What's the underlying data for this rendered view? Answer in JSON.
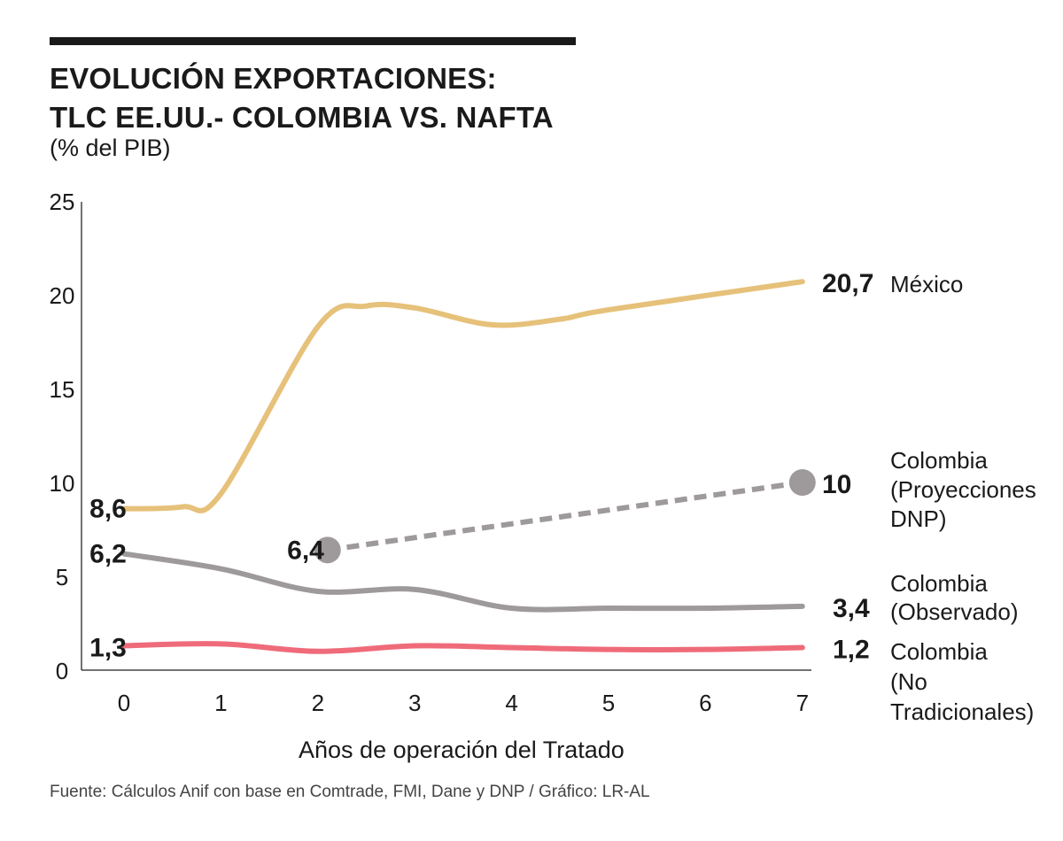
{
  "title_line1": "EVOLUCIÓN EXPORTACIONES:",
  "title_line2": "TLC EE.UU.- COLOMBIA VS. NAFTA",
  "subtitle": "(% del PIB)",
  "source": "Fuente: Cálculos Anif con base en Comtrade, FMI, Dane y DNP / Gráfico: LR-AL",
  "colors": {
    "mexico": "#e6c17a",
    "colombia_proy": "#9e9a9c",
    "colombia_obs": "#9e9a9c",
    "colombia_notrad": "#ef6b7a",
    "text": "#1a1a1a"
  },
  "chart_data": {
    "type": "line",
    "xlabel": "Años de operación del Tratado",
    "ylabel": "",
    "xlim": [
      0,
      7
    ],
    "ylim": [
      0,
      25
    ],
    "x_ticks": [
      "0",
      "1",
      "2",
      "3",
      "4",
      "5",
      "6",
      "7"
    ],
    "y_ticks": [
      "0",
      "5",
      "10",
      "15",
      "20",
      "25"
    ],
    "grid": false,
    "series": [
      {
        "key": "mexico",
        "name": "México",
        "name_lines": [
          "México"
        ],
        "x": [
          0,
          0.6,
          1,
          2,
          2.5,
          3,
          3.8,
          4.5,
          5,
          7
        ],
        "y": [
          8.6,
          8.7,
          9.4,
          18.3,
          19.4,
          19.3,
          18.4,
          18.7,
          19.2,
          20.7
        ],
        "start_label": "8,6",
        "end_label": "20,7",
        "style": "solid"
      },
      {
        "key": "colombia_proy",
        "name": "Colombia",
        "name_lines": [
          "Colombia",
          "(Proyecciones",
          "DNP)"
        ],
        "x": [
          2.1,
          7
        ],
        "y": [
          6.4,
          10
        ],
        "start_label": "6,4",
        "end_label": "10",
        "style": "dashed"
      },
      {
        "key": "colombia_obs",
        "name": "Colombia",
        "name_lines": [
          "Colombia",
          "(Observado)"
        ],
        "x": [
          0,
          1,
          2,
          3,
          4,
          5,
          6,
          7
        ],
        "y": [
          6.2,
          5.4,
          4.2,
          4.3,
          3.3,
          3.3,
          3.3,
          3.4
        ],
        "start_label": "6,2",
        "end_label": "3,4",
        "style": "solid"
      },
      {
        "key": "colombia_notrad",
        "name": "Colombia",
        "name_lines": [
          "Colombia",
          "(No",
          "Tradicionales)"
        ],
        "x": [
          0,
          1,
          2,
          3,
          4,
          5,
          6,
          7
        ],
        "y": [
          1.3,
          1.4,
          1.0,
          1.3,
          1.2,
          1.1,
          1.1,
          1.2
        ],
        "start_label": "1,3",
        "end_label": "1,2",
        "style": "solid"
      }
    ]
  }
}
